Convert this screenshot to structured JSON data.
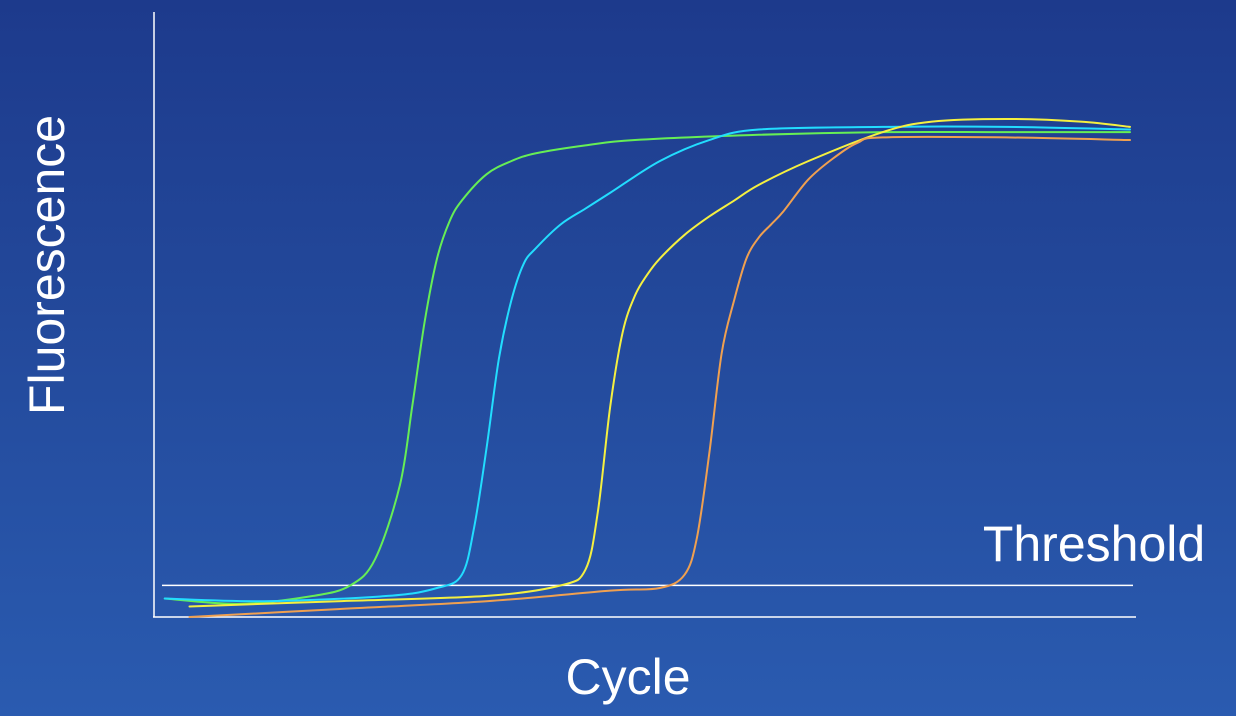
{
  "chart_data": {
    "type": "line",
    "title": "",
    "xlabel": "Cycle",
    "ylabel": "Fluorescence",
    "xlim": [
      0,
      40
    ],
    "ylim": [
      0,
      1
    ],
    "x_ticks_shown": false,
    "y_ticks_shown": false,
    "grid": false,
    "legend": "none",
    "threshold": {
      "label": "Threshold",
      "y": 0.06,
      "color": "#ffffff"
    },
    "series": [
      {
        "color": "#66ee55",
        "x": [
          1,
          4,
          7,
          8.5,
          9.5,
          10.5,
          11,
          11.5,
          12,
          12.5,
          13,
          14,
          15,
          16,
          18,
          20,
          25,
          30,
          35,
          40
        ],
        "y": [
          0.035,
          0.025,
          0.04,
          0.06,
          0.11,
          0.25,
          0.4,
          0.56,
          0.68,
          0.75,
          0.79,
          0.84,
          0.865,
          0.88,
          0.895,
          0.905,
          0.915,
          0.92,
          0.92,
          0.92
        ]
      },
      {
        "color": "#22ddff",
        "x": [
          1,
          5,
          10,
          12,
          13,
          13.5,
          14,
          14.5,
          15,
          15.5,
          16,
          17,
          18,
          19,
          21,
          23,
          25,
          30,
          35,
          40
        ],
        "y": [
          0.035,
          0.03,
          0.04,
          0.055,
          0.08,
          0.17,
          0.32,
          0.49,
          0.6,
          0.67,
          0.7,
          0.745,
          0.775,
          0.805,
          0.865,
          0.905,
          0.925,
          0.93,
          0.93,
          0.925
        ]
      },
      {
        "color": "#f5f040",
        "x": [
          2,
          8,
          14,
          17,
          18,
          18.5,
          19,
          19.5,
          20,
          20.5,
          21,
          22,
          23,
          24,
          25,
          27,
          30,
          32,
          35,
          38,
          40
        ],
        "y": [
          0.02,
          0.03,
          0.04,
          0.06,
          0.09,
          0.2,
          0.4,
          0.54,
          0.61,
          0.65,
          0.68,
          0.725,
          0.76,
          0.79,
          0.82,
          0.865,
          0.92,
          0.94,
          0.945,
          0.94,
          0.93
        ]
      },
      {
        "color": "#f0a050",
        "x": [
          2,
          8,
          14,
          19,
          21,
          22,
          22.5,
          23,
          23.5,
          24,
          24.5,
          25,
          25.5,
          26,
          27,
          28,
          29,
          30,
          35,
          40
        ],
        "y": [
          0.0,
          0.015,
          0.03,
          0.05,
          0.055,
          0.08,
          0.15,
          0.31,
          0.5,
          0.6,
          0.68,
          0.72,
          0.745,
          0.77,
          0.83,
          0.87,
          0.9,
          0.91,
          0.91,
          0.905
        ]
      }
    ]
  }
}
